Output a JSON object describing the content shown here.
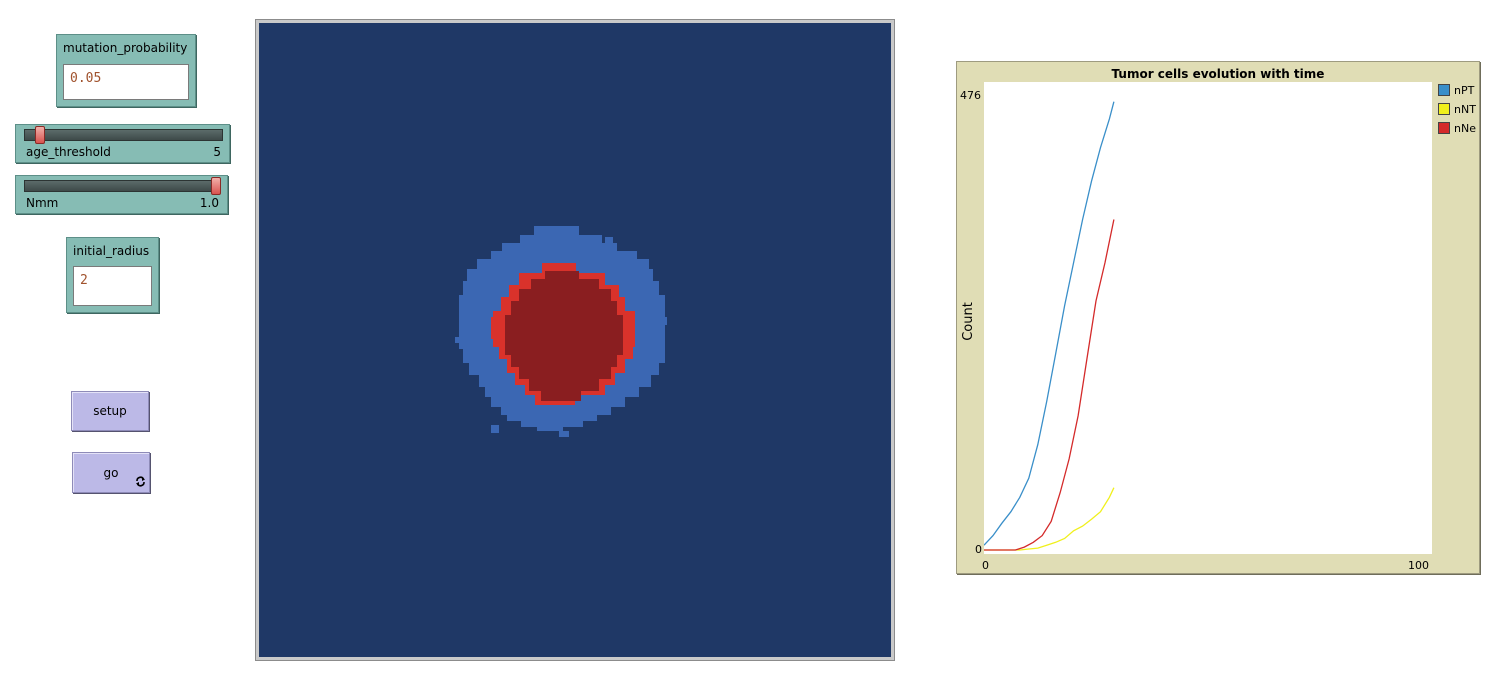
{
  "inputs": {
    "mutation_probability": {
      "label": "mutation_probability",
      "value": "0.05"
    },
    "initial_radius": {
      "label": "initial_radius",
      "value": "2"
    }
  },
  "sliders": {
    "age_threshold": {
      "label": "age_threshold",
      "value": "5",
      "fraction": 0.06
    },
    "Nmm": {
      "label": "Nmm",
      "value": "1.0",
      "fraction": 1.0
    }
  },
  "buttons": {
    "setup": {
      "label": "setup"
    },
    "go": {
      "label": "go",
      "forever_icon": "loop-arrows-icon"
    }
  },
  "plot": {
    "title": "Tumor cells evolution with time",
    "ylabel": "Count",
    "y_max_label": "476",
    "y_min_label": "0",
    "x_min_label": "0",
    "x_max_label": "100",
    "legend": [
      {
        "name": "nPT",
        "color": "#3a8fc9"
      },
      {
        "name": "nNT",
        "color": "#f0f01c"
      },
      {
        "name": "nNe",
        "color": "#d42a2a"
      }
    ]
  },
  "chart_data": {
    "type": "line",
    "title": "Tumor cells evolution with time",
    "xlabel": "",
    "ylabel": "Count",
    "xlim": [
      0,
      100
    ],
    "ylim": [
      0,
      476
    ],
    "series": [
      {
        "name": "nPT",
        "color": "#3a8fc9",
        "x": [
          0,
          2,
          4,
          6,
          8,
          10,
          12,
          14,
          16,
          18,
          20,
          22,
          24,
          26,
          28,
          29
        ],
        "y": [
          5,
          15,
          28,
          40,
          55,
          75,
          110,
          155,
          205,
          255,
          300,
          345,
          385,
          420,
          450,
          468
        ]
      },
      {
        "name": "nNT",
        "color": "#f0f01c",
        "x": [
          0,
          8,
          10,
          12,
          14,
          16,
          18,
          20,
          22,
          24,
          26,
          28,
          29
        ],
        "y": [
          0,
          0,
          1,
          2,
          5,
          8,
          12,
          20,
          25,
          32,
          40,
          55,
          65
        ]
      },
      {
        "name": "nNe",
        "color": "#d42a2a",
        "x": [
          0,
          7,
          9,
          11,
          13,
          15,
          17,
          19,
          21,
          23,
          25,
          27,
          29
        ],
        "y": [
          0,
          0,
          3,
          8,
          15,
          30,
          60,
          95,
          140,
          200,
          260,
          300,
          345
        ]
      }
    ]
  }
}
